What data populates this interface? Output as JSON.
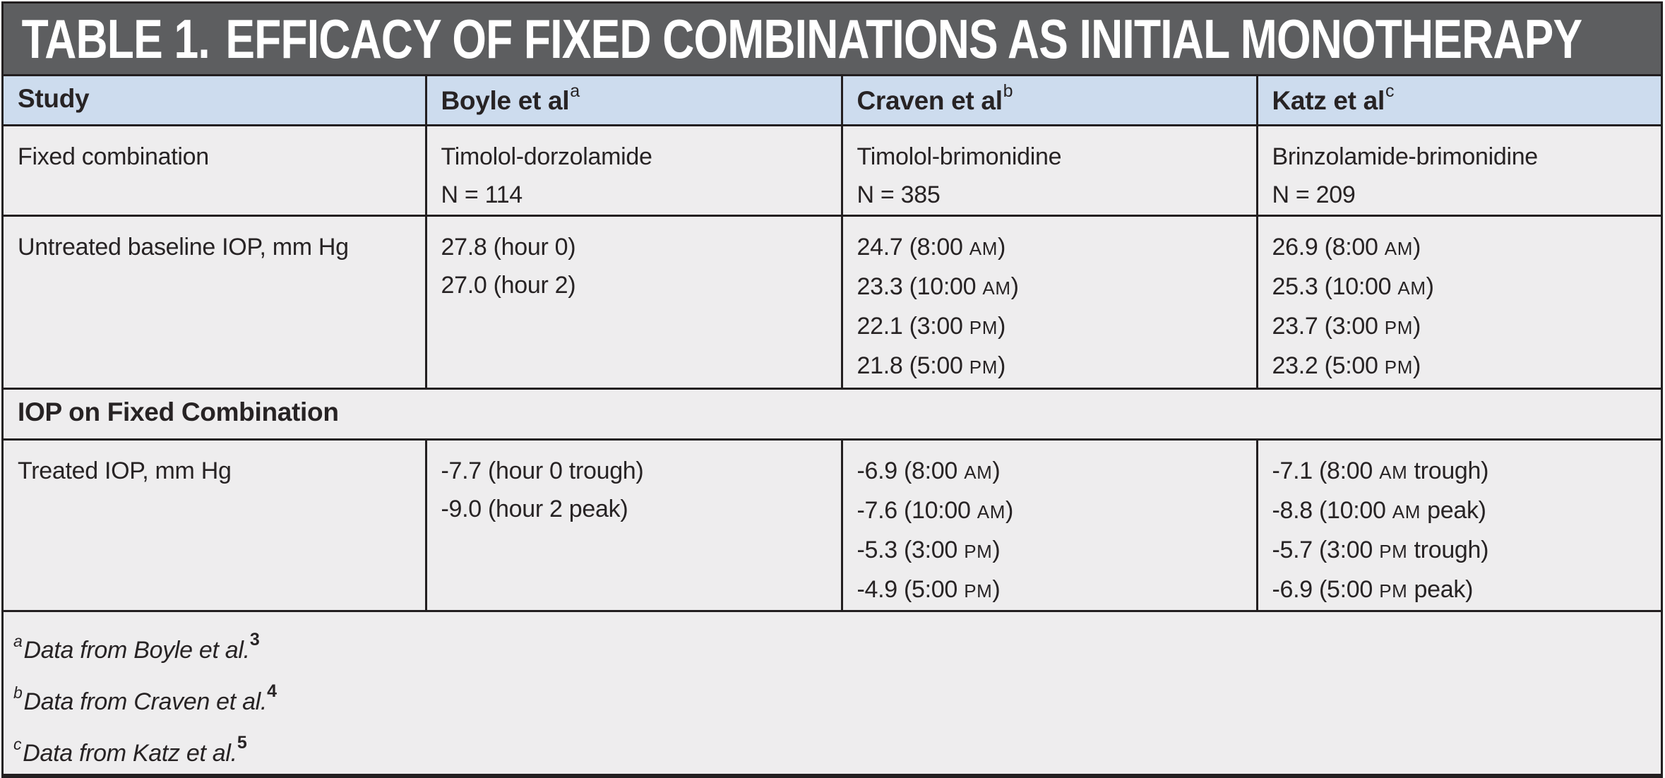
{
  "title": {
    "prefix": "TABLE 1.",
    "text": "EFFICACY OF FIXED COMBINATIONS AS INITIAL MONOTHERAPY"
  },
  "table": {
    "header": {
      "study_label": "Study",
      "columns": [
        {
          "name": "Boyle et al",
          "sup": "a"
        },
        {
          "name": "Craven et al",
          "sup": "b"
        },
        {
          "name": "Katz et al",
          "sup": "c"
        }
      ]
    },
    "rows": [
      {
        "label": "Fixed combination",
        "cells": [
          [
            "Timolol-dorzolamide",
            "N = 114"
          ],
          [
            "Timolol-brimonidine",
            "N = 385"
          ],
          [
            "Brinzolamide-brimonidine",
            "N = 209"
          ]
        ]
      },
      {
        "label": "Untreated baseline IOP, mm Hg",
        "cells": [
          [
            "27.8 (hour 0)",
            "27.0 (hour 2)"
          ],
          [
            "24.7 (8:00 AM)",
            "23.3 (10:00 AM)",
            "22.1 (3:00 PM)",
            "21.8 (5:00 PM)"
          ],
          [
            "26.9 (8:00 AM)",
            "25.3 (10:00 AM)",
            "23.7 (3:00 PM)",
            "23.2 (5:00 PM)"
          ]
        ]
      }
    ],
    "section_header": "IOP on Fixed Combination",
    "rows2": [
      {
        "label": "Treated IOP, mm Hg",
        "cells": [
          [
            "-7.7 (hour 0 trough)",
            "-9.0 (hour 2 peak)"
          ],
          [
            "-6.9 (8:00 AM)",
            "-7.6 (10:00 AM)",
            "-5.3 (3:00 PM)",
            "-4.9 (5:00 PM)"
          ],
          [
            "-7.1 (8:00 AM trough)",
            "-8.8 (10:00 AM peak)",
            "-5.7 (3:00 PM trough)",
            "-6.9 (5:00 PM peak)"
          ]
        ]
      }
    ],
    "footnotes": [
      {
        "sup": "a",
        "text": "Data from Boyle et al.",
        "ref": "3"
      },
      {
        "sup": "b",
        "text": "Data from Craven et al.",
        "ref": "4"
      },
      {
        "sup": "c",
        "text": "Data from Katz et al.",
        "ref": "5"
      }
    ]
  },
  "colors": {
    "title_bar_bg": "#5d5e60",
    "title_text": "#ffffff",
    "header_row_bg": "#cddcee",
    "body_bg": "#eeedee",
    "border": "#231f20",
    "text": "#272324"
  }
}
